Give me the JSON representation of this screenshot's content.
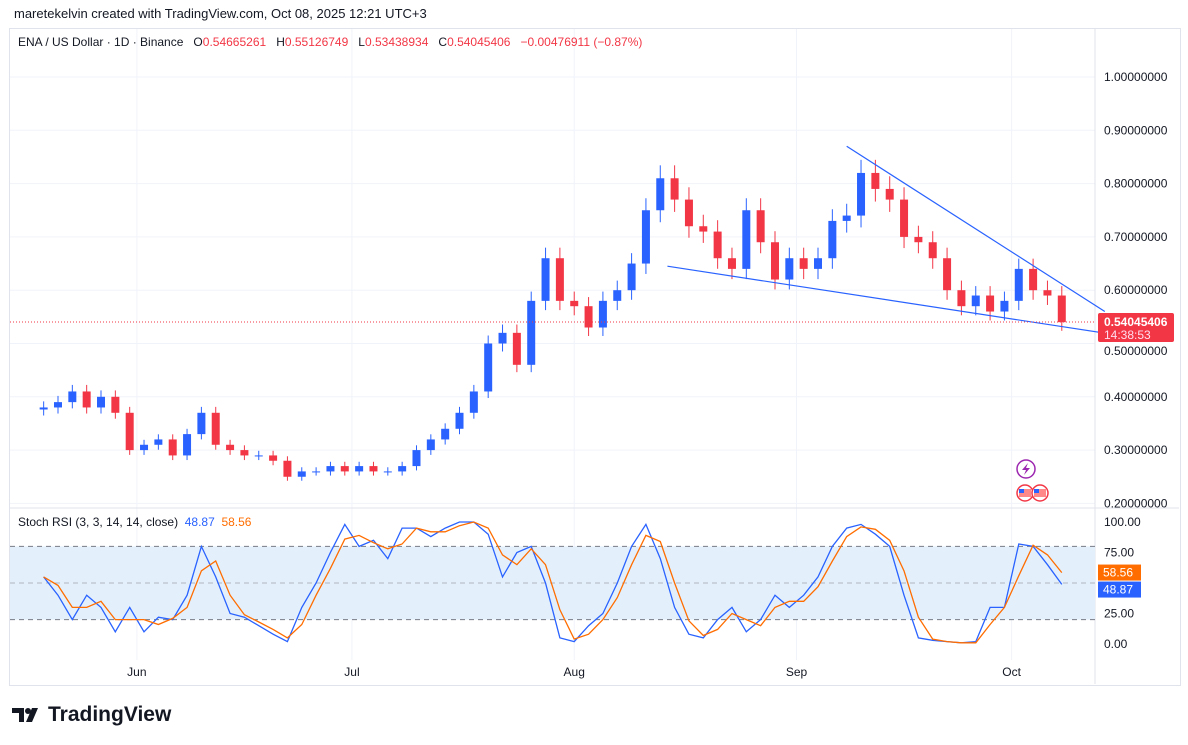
{
  "header": {
    "credit": "maretekelvin created with TradingView.com, Oct 08, 2025 12:21 UTC+3"
  },
  "legend": {
    "symbol": "ENA / US Dollar · 1D · Binance",
    "o_label": "O",
    "o": "0.54665261",
    "h_label": "H",
    "h": "0.55126749",
    "l_label": "L",
    "l": "0.53438934",
    "c_label": "C",
    "c": "0.54045406",
    "change": "−0.00476911 (−0.87%)"
  },
  "price_tag": {
    "price": "0.54045406",
    "countdown": "14:38:53"
  },
  "stoch": {
    "title": "Stoch RSI (3, 3, 14, 14, close)",
    "k": "48.87",
    "d": "58.56"
  },
  "brand": {
    "logo_text": "TradingView"
  },
  "colors": {
    "up": "#2962ff",
    "down": "#f23645",
    "k": "#2962ff",
    "d": "#ff6d00",
    "trendline": "#2962ff",
    "band": "#e3f0fc"
  },
  "chart_data": [
    {
      "type": "candlestick",
      "title": "ENA / US Dollar · 1D · Binance",
      "ylim": [
        0.2,
        1.0
      ],
      "y_ticks": [
        "1.00000000",
        "0.90000000",
        "0.80000000",
        "0.70000000",
        "0.60000000",
        "0.50000000",
        "0.40000000",
        "0.30000000",
        "0.20000000"
      ],
      "x_ticks": [
        {
          "label": "Jun",
          "date": "2025-06-01"
        },
        {
          "label": "Jul",
          "date": "2025-07-01"
        },
        {
          "label": "Aug",
          "date": "2025-08-01"
        },
        {
          "label": "Sep",
          "date": "2025-09-01"
        },
        {
          "label": "Oct",
          "date": "2025-10-01"
        }
      ],
      "dates": [
        "2025-05-19",
        "2025-05-21",
        "2025-05-23",
        "2025-05-25",
        "2025-05-27",
        "2025-05-29",
        "2025-05-31",
        "2025-06-02",
        "2025-06-04",
        "2025-06-06",
        "2025-06-08",
        "2025-06-10",
        "2025-06-12",
        "2025-06-14",
        "2025-06-16",
        "2025-06-18",
        "2025-06-20",
        "2025-06-22",
        "2025-06-24",
        "2025-06-26",
        "2025-06-28",
        "2025-06-30",
        "2025-07-02",
        "2025-07-04",
        "2025-07-06",
        "2025-07-08",
        "2025-07-10",
        "2025-07-12",
        "2025-07-14",
        "2025-07-16",
        "2025-07-18",
        "2025-07-20",
        "2025-07-22",
        "2025-07-24",
        "2025-07-26",
        "2025-07-28",
        "2025-07-30",
        "2025-08-01",
        "2025-08-03",
        "2025-08-05",
        "2025-08-07",
        "2025-08-09",
        "2025-08-11",
        "2025-08-13",
        "2025-08-15",
        "2025-08-17",
        "2025-08-19",
        "2025-08-21",
        "2025-08-23",
        "2025-08-25",
        "2025-08-27",
        "2025-08-29",
        "2025-08-31",
        "2025-09-02",
        "2025-09-04",
        "2025-09-06",
        "2025-09-08",
        "2025-09-10",
        "2025-09-12",
        "2025-09-14",
        "2025-09-16",
        "2025-09-18",
        "2025-09-20",
        "2025-09-22",
        "2025-09-24",
        "2025-09-26",
        "2025-09-28",
        "2025-09-30",
        "2025-10-02",
        "2025-10-04",
        "2025-10-06",
        "2025-10-08"
      ],
      "close": [
        0.38,
        0.39,
        0.41,
        0.38,
        0.4,
        0.37,
        0.3,
        0.31,
        0.32,
        0.29,
        0.33,
        0.37,
        0.31,
        0.3,
        0.29,
        0.29,
        0.28,
        0.25,
        0.26,
        0.26,
        0.27,
        0.26,
        0.27,
        0.26,
        0.26,
        0.27,
        0.3,
        0.32,
        0.34,
        0.37,
        0.41,
        0.5,
        0.52,
        0.46,
        0.58,
        0.66,
        0.58,
        0.57,
        0.53,
        0.58,
        0.6,
        0.65,
        0.75,
        0.81,
        0.77,
        0.72,
        0.71,
        0.66,
        0.64,
        0.75,
        0.69,
        0.62,
        0.66,
        0.64,
        0.66,
        0.73,
        0.74,
        0.82,
        0.79,
        0.77,
        0.7,
        0.69,
        0.66,
        0.6,
        0.57,
        0.59,
        0.56,
        0.58,
        0.64,
        0.6,
        0.59,
        0.54
      ],
      "last_price": 0.54045406,
      "trendlines": [
        {
          "from": [
            "2025-09-08",
            0.87
          ],
          "to": [
            "2025-10-14",
            0.56
          ]
        },
        {
          "from": [
            "2025-08-14",
            0.645
          ],
          "to": [
            "2025-10-21",
            0.505
          ]
        }
      ]
    },
    {
      "type": "line",
      "title": "Stoch RSI (3, 3, 14, 14, close)",
      "ylim": [
        0,
        100
      ],
      "y_ticks": [
        "100.00",
        "75.00",
        "25.00",
        "0.00"
      ],
      "bands": [
        20,
        80
      ],
      "series": [
        {
          "name": "K",
          "values": [
            55,
            40,
            20,
            40,
            30,
            10,
            30,
            10,
            22,
            20,
            40,
            80,
            55,
            25,
            22,
            15,
            8,
            2,
            30,
            50,
            75,
            98,
            80,
            85,
            70,
            95,
            95,
            88,
            95,
            100,
            100,
            90,
            55,
            75,
            80,
            50,
            5,
            2,
            15,
            25,
            50,
            80,
            98,
            70,
            30,
            8,
            5,
            20,
            30,
            10,
            20,
            40,
            30,
            40,
            55,
            80,
            95,
            98,
            90,
            80,
            40,
            5,
            3,
            2,
            1,
            2,
            30,
            30,
            82,
            80,
            65,
            48.87
          ]
        },
        {
          "name": "D",
          "values": [
            55,
            48,
            30,
            30,
            35,
            20,
            20,
            20,
            16,
            21,
            30,
            60,
            68,
            40,
            24,
            18,
            12,
            5,
            16,
            40,
            62,
            86,
            89,
            83,
            78,
            82,
            95,
            92,
            92,
            97,
            100,
            95,
            73,
            65,
            78,
            65,
            28,
            4,
            8,
            20,
            38,
            65,
            89,
            84,
            50,
            19,
            7,
            12,
            25,
            20,
            15,
            30,
            35,
            35,
            47,
            68,
            88,
            96,
            94,
            85,
            60,
            22,
            4,
            2,
            1,
            1,
            16,
            30,
            56,
            81,
            73,
            58.56
          ]
        }
      ]
    }
  ]
}
